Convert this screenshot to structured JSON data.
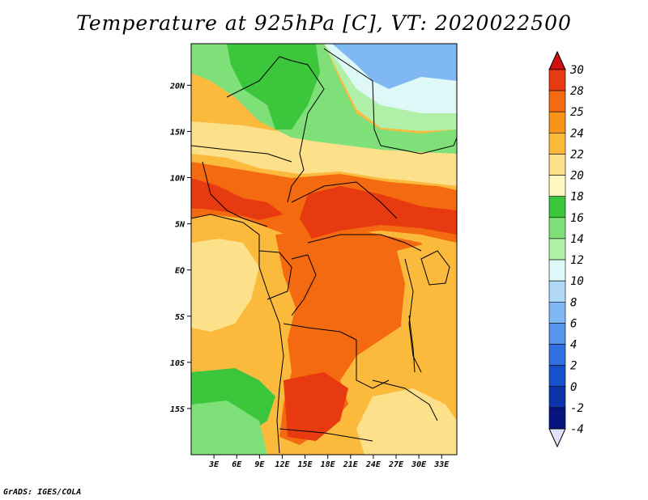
{
  "title": "Temperature at 925hPa [C], VT: 2020022500",
  "footer": "GrADS: IGES/COLA",
  "map": {
    "lon_range": [
      0,
      35
    ],
    "lat_range": [
      -20,
      24.5
    ],
    "lat_ticks": [
      {
        "value": 20,
        "label": "20N"
      },
      {
        "value": 15,
        "label": "15N"
      },
      {
        "value": 10,
        "label": "10N"
      },
      {
        "value": 5,
        "label": "5N"
      },
      {
        "value": 0,
        "label": "EQ"
      },
      {
        "value": -5,
        "label": "5S"
      },
      {
        "value": -10,
        "label": "10S"
      },
      {
        "value": -15,
        "label": "15S"
      }
    ],
    "lon_ticks": [
      {
        "value": 3,
        "label": "3E"
      },
      {
        "value": 6,
        "label": "6E"
      },
      {
        "value": 9,
        "label": "9E"
      },
      {
        "value": 12,
        "label": "12E"
      },
      {
        "value": 15,
        "label": "15E"
      },
      {
        "value": 18,
        "label": "18E"
      },
      {
        "value": 21,
        "label": "21E"
      },
      {
        "value": 24,
        "label": "24E"
      },
      {
        "value": 27,
        "label": "27E"
      },
      {
        "value": 30,
        "label": "30E"
      },
      {
        "value": 33,
        "label": "33E"
      }
    ]
  },
  "colorbar": {
    "labels": [
      "30",
      "28",
      "25",
      "24",
      "22",
      "20",
      "18",
      "16",
      "14",
      "12",
      "10",
      "8",
      "6",
      "4",
      "2",
      "0",
      "-2",
      "-4"
    ],
    "colors": [
      "#d01010",
      "#e83a10",
      "#f46a10",
      "#f8941a",
      "#fbba3c",
      "#fde08a",
      "#fff8c0",
      "#3cc63c",
      "#7fe07a",
      "#b0f0a8",
      "#def8f8",
      "#b0d8f8",
      "#80b8f4",
      "#5896ec",
      "#3070e0",
      "#1850cc",
      "#0a34a8",
      "#061480",
      "#101050"
    ]
  }
}
